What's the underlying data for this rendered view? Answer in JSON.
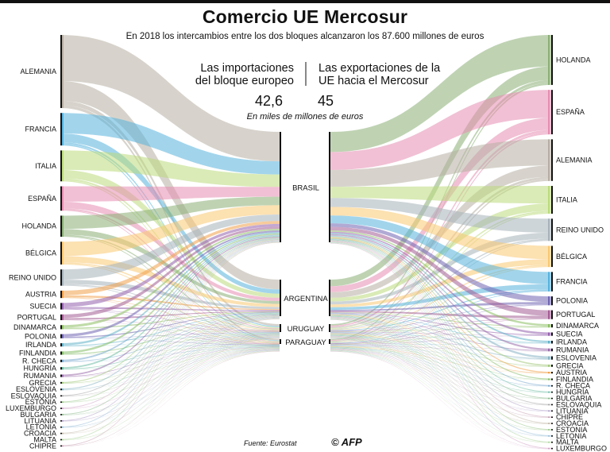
{
  "title": "Comercio UE Mercosur",
  "subtitle": "En 2018 los intercambios entre los dos bloques alcanzaron los 87.600 millones de euros",
  "imports_label": "Las importaciones del bloque europeo",
  "exports_label": "Las exportaciones de la UE hacia el Mercosur",
  "imports_value": "42,6",
  "exports_value": "45",
  "unit_note": "En miles de millones de euros",
  "source": "Fuente: Eurostat",
  "credit": "© AFP",
  "mercosur": [
    "BRASIL",
    "ARGENTINA",
    "URUGUAY",
    "PARAGUAY"
  ],
  "chart_data": {
    "type": "sankey",
    "left_countries": [
      {
        "name": "ALEMANIA",
        "color": "#b6aea3",
        "weight": 9.0
      },
      {
        "name": "FRANCIA",
        "color": "#55b3dd",
        "weight": 4.0
      },
      {
        "name": "ITALIA",
        "color": "#bcdb7c",
        "weight": 3.8
      },
      {
        "name": "ESPAÑA",
        "color": "#e58db1",
        "weight": 3.0
      },
      {
        "name": "HOLANDA",
        "color": "#8aaf75",
        "weight": 2.6
      },
      {
        "name": "BÉLGICA",
        "color": "#f9c871",
        "weight": 2.8
      },
      {
        "name": "REINO UNIDO",
        "color": "#a6b2ba",
        "weight": 2.0
      },
      {
        "name": "AUSTRIA",
        "color": "#f0a04a",
        "weight": 0.9
      },
      {
        "name": "SUECIA",
        "color": "#9460ad",
        "weight": 0.8
      },
      {
        "name": "PORTUGAL",
        "color": "#a35c94",
        "weight": 0.7
      },
      {
        "name": "DINAMARCA",
        "color": "#8cbf62",
        "weight": 0.5
      },
      {
        "name": "POLONIA",
        "color": "#7065b2",
        "weight": 0.5
      },
      {
        "name": "IRLANDA",
        "color": "#62b3c9",
        "weight": 0.4
      },
      {
        "name": "FINLANDIA",
        "color": "#87be6a",
        "weight": 0.4
      },
      {
        "name": "R. CHECA",
        "color": "#79a8cd",
        "weight": 0.3
      },
      {
        "name": "HUNGRÍA",
        "color": "#6cbba2",
        "weight": 0.3
      },
      {
        "name": "RUMANIA",
        "color": "#9b6dac",
        "weight": 0.3
      },
      {
        "name": "GRECIA",
        "color": "#a3c97c",
        "weight": 0.2
      },
      {
        "name": "ESLOVENIA",
        "color": "#88b4c4",
        "weight": 0.2
      },
      {
        "name": "ESLOVAQUIA",
        "color": "#a7a7a7",
        "weight": 0.15
      },
      {
        "name": "ESTONIA",
        "color": "#9cc98a",
        "weight": 0.15
      },
      {
        "name": "LUXEMBURGO",
        "color": "#d1a4c6",
        "weight": 0.12
      },
      {
        "name": "BULGARIA",
        "color": "#8fbc8f",
        "weight": 0.12
      },
      {
        "name": "LITUANIA",
        "color": "#b0a1c8",
        "weight": 0.1
      },
      {
        "name": "LETONIA",
        "color": "#9ac0d9",
        "weight": 0.1
      },
      {
        "name": "CROACIA",
        "color": "#c3b8a7",
        "weight": 0.1
      },
      {
        "name": "MALTA",
        "color": "#b1d5a0",
        "weight": 0.08
      },
      {
        "name": "CHIPRE",
        "color": "#c9a3b5",
        "weight": 0.08
      }
    ],
    "right_countries": [
      {
        "name": "HOLANDA",
        "color": "#8aaf75",
        "weight": 9.0
      },
      {
        "name": "ESPAÑA",
        "color": "#e58db1",
        "weight": 8.0
      },
      {
        "name": "ALEMANIA",
        "color": "#b6aea3",
        "weight": 7.5
      },
      {
        "name": "ITALIA",
        "color": "#bcdb7c",
        "weight": 5.0
      },
      {
        "name": "REINO UNIDO",
        "color": "#a6b2ba",
        "weight": 4.0
      },
      {
        "name": "BÉLGICA",
        "color": "#f9c871",
        "weight": 3.8
      },
      {
        "name": "FRANCIA",
        "color": "#55b3dd",
        "weight": 3.5
      },
      {
        "name": "POLONIA",
        "color": "#7065b2",
        "weight": 1.6
      },
      {
        "name": "PORTUGAL",
        "color": "#a35c94",
        "weight": 1.6
      },
      {
        "name": "DINAMARCA",
        "color": "#8cbf62",
        "weight": 0.6
      },
      {
        "name": "SUECIA",
        "color": "#9460ad",
        "weight": 0.6
      },
      {
        "name": "IRLANDA",
        "color": "#62b3c9",
        "weight": 0.5
      },
      {
        "name": "RUMANIA",
        "color": "#9b6dac",
        "weight": 0.5
      },
      {
        "name": "ESLOVENIA",
        "color": "#88b4c4",
        "weight": 0.6
      },
      {
        "name": "GRECIA",
        "color": "#a3c97c",
        "weight": 0.4
      },
      {
        "name": "AUSTRIA",
        "color": "#f0a04a",
        "weight": 0.3
      },
      {
        "name": "FINLANDIA",
        "color": "#87be6a",
        "weight": 0.3
      },
      {
        "name": "R. CHECA",
        "color": "#79a8cd",
        "weight": 0.25
      },
      {
        "name": "HUNGRÍA",
        "color": "#6cbba2",
        "weight": 0.2
      },
      {
        "name": "BULGARIA",
        "color": "#8fbc8f",
        "weight": 0.2
      },
      {
        "name": "ESLOVAQUIA",
        "color": "#a7a7a7",
        "weight": 0.15
      },
      {
        "name": "LITUANIA",
        "color": "#b0a1c8",
        "weight": 0.12
      },
      {
        "name": "CHIPRE",
        "color": "#c9a3b5",
        "weight": 0.1
      },
      {
        "name": "CROACIA",
        "color": "#c3b8a7",
        "weight": 0.1
      },
      {
        "name": "ESTONIA",
        "color": "#9cc98a",
        "weight": 0.1
      },
      {
        "name": "LETONIA",
        "color": "#9ac0d9",
        "weight": 0.1
      },
      {
        "name": "MALTA",
        "color": "#b1d5a0",
        "weight": 0.08
      },
      {
        "name": "LUXEMBURGO",
        "color": "#d1a4c6",
        "weight": 0.08
      }
    ],
    "mercosur_shares": {
      "BRASIL": 0.63,
      "ARGENTINA": 0.27,
      "URUGUAY": 0.06,
      "PARAGUAY": 0.04
    }
  }
}
